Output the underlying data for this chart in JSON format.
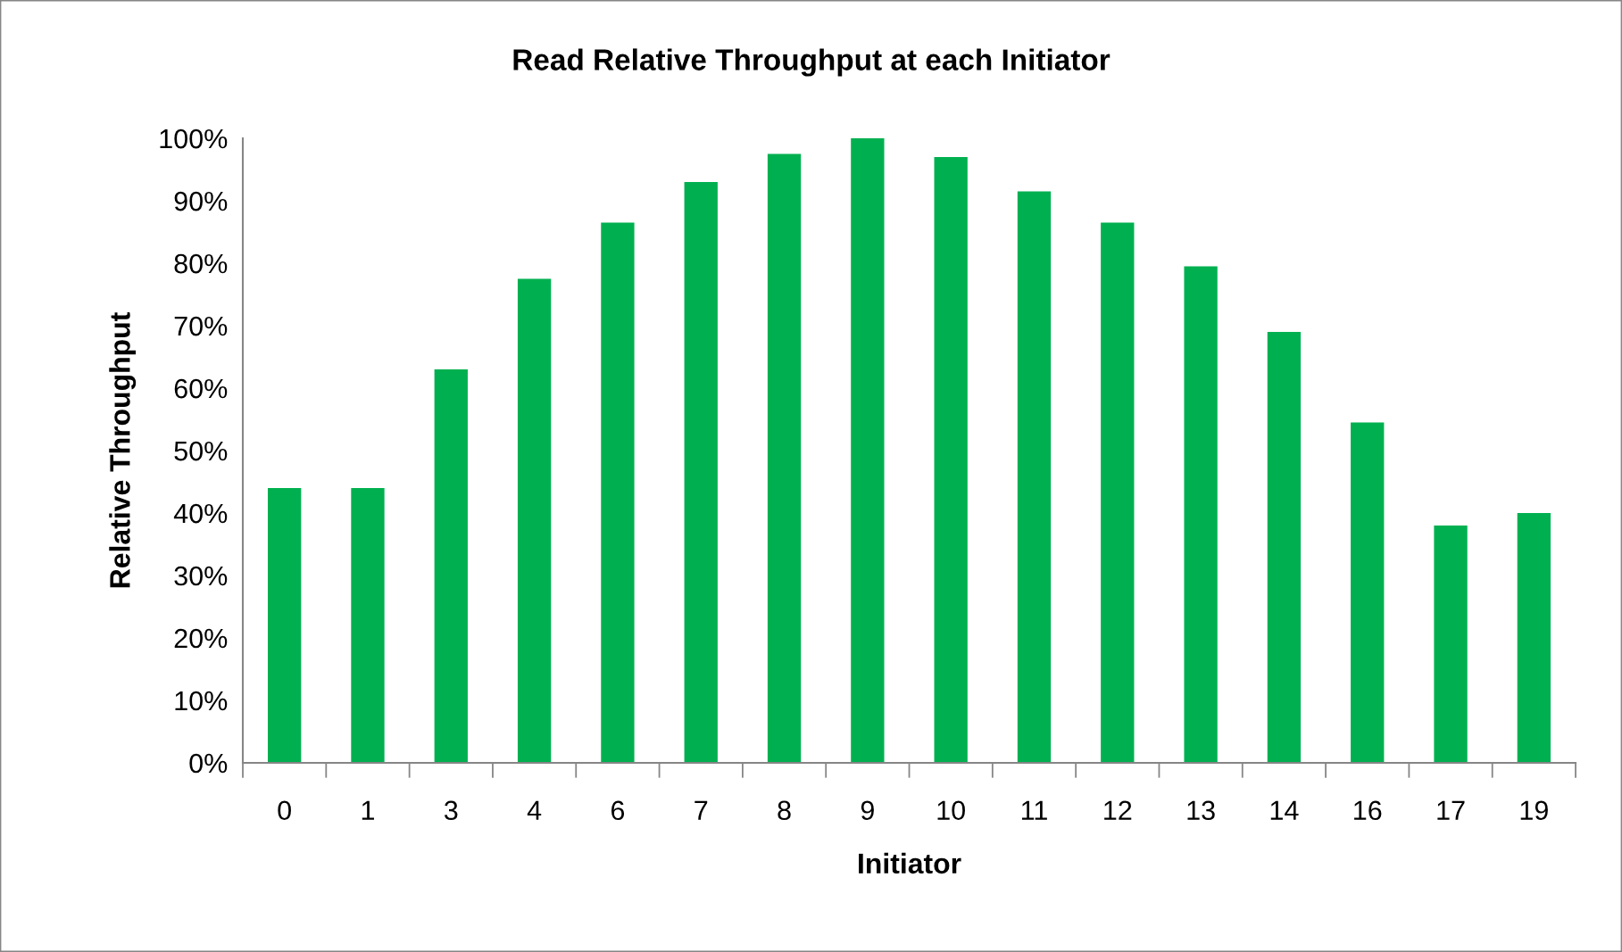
{
  "chart_data": {
    "type": "bar",
    "title": "Read Relative Throughput at each Initiator",
    "xlabel": "Initiator",
    "ylabel": "Relative Throughput",
    "categories": [
      "0",
      "1",
      "3",
      "4",
      "6",
      "7",
      "8",
      "9",
      "10",
      "11",
      "12",
      "13",
      "14",
      "16",
      "17",
      "19"
    ],
    "values": [
      44,
      44,
      63,
      77.5,
      86.5,
      93,
      97.5,
      100,
      97,
      91.5,
      86.5,
      79.5,
      69,
      54.5,
      38,
      40
    ],
    "color": "#00b050",
    "ylim": [
      0,
      100
    ],
    "yticks": [
      {
        "value": 0,
        "label": "0%"
      },
      {
        "value": 10,
        "label": "10%"
      },
      {
        "value": 20,
        "label": "20%"
      },
      {
        "value": 30,
        "label": "30%"
      },
      {
        "value": 40,
        "label": "40%"
      },
      {
        "value": 50,
        "label": "50%"
      },
      {
        "value": 60,
        "label": "60%"
      },
      {
        "value": 70,
        "label": "70%"
      },
      {
        "value": 80,
        "label": "80%"
      },
      {
        "value": 90,
        "label": "90%"
      },
      {
        "value": 100,
        "label": "100%"
      }
    ]
  }
}
